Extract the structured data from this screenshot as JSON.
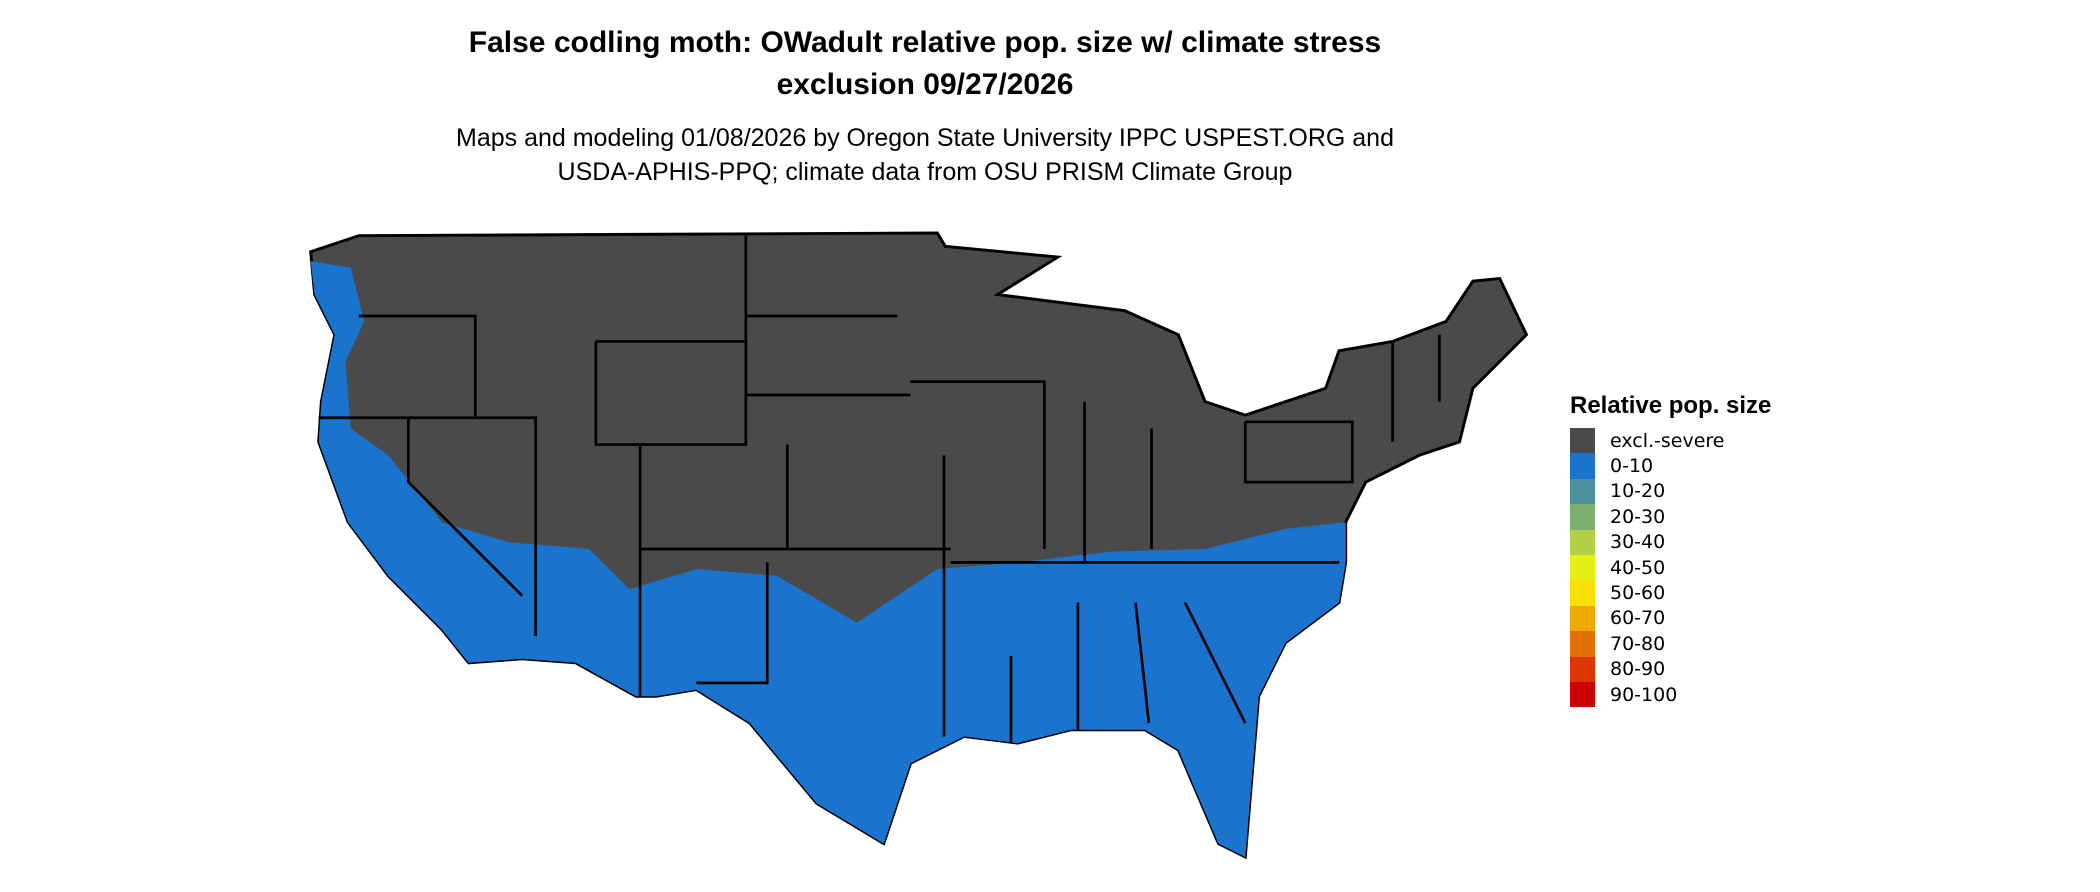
{
  "title_line1": "False codling moth: OWadult relative pop. size w/ climate stress",
  "title_line2": "exclusion 09/27/2026",
  "subtitle_line1": "Maps and modeling 01/08/2026 by Oregon State University IPPC USPEST.ORG and",
  "subtitle_line2": "USDA-APHIS-PPQ; climate data from OSU PRISM Climate Group",
  "legend": {
    "title": "Relative pop. size",
    "items": [
      {
        "label": "excl.-severe",
        "color": "#4a4a4a"
      },
      {
        "label": "0-10",
        "color": "#1a73cc"
      },
      {
        "label": "10-20",
        "color": "#4a919b"
      },
      {
        "label": "20-30",
        "color": "#7daf71"
      },
      {
        "label": "30-40",
        "color": "#b2d146"
      },
      {
        "label": "40-50",
        "color": "#e4f014"
      },
      {
        "label": "50-60",
        "color": "#f8e000"
      },
      {
        "label": "60-70",
        "color": "#eeaa00"
      },
      {
        "label": "70-80",
        "color": "#e27000"
      },
      {
        "label": "80-90",
        "color": "#da3800"
      },
      {
        "label": "90-100",
        "color": "#cc0000"
      }
    ]
  }
}
